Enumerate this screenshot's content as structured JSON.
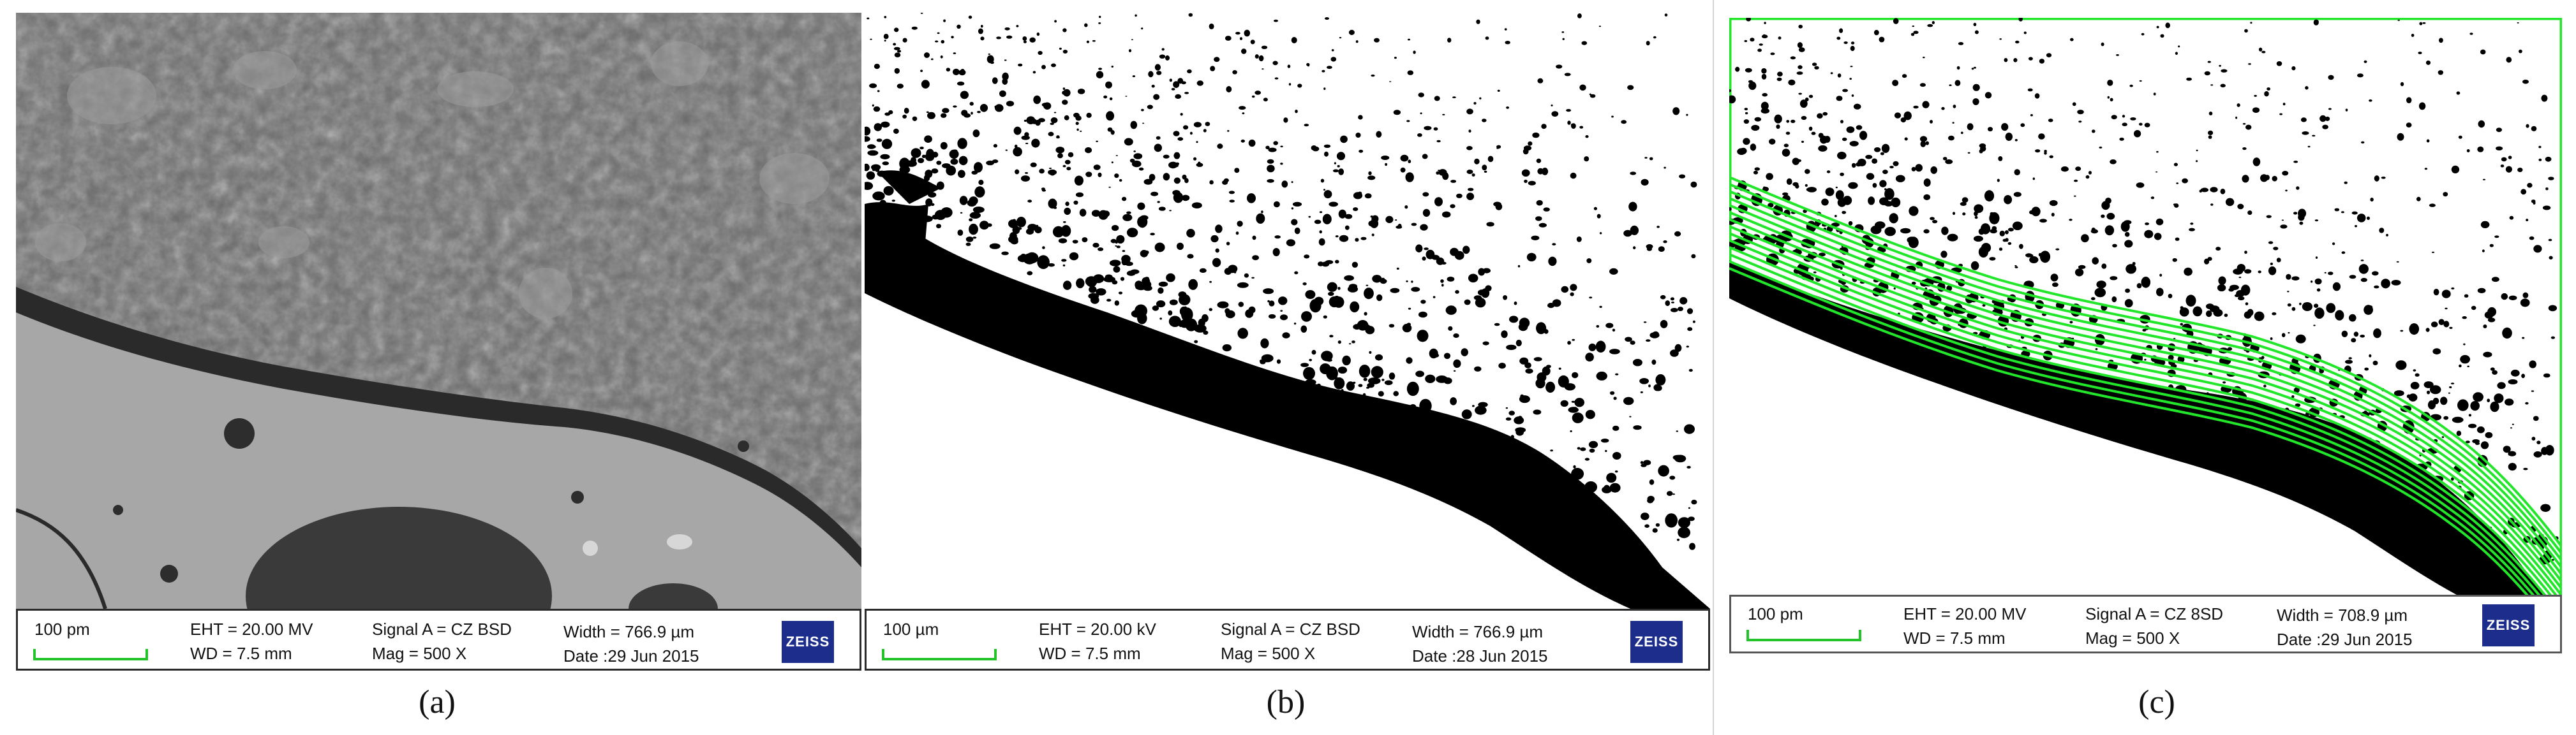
{
  "panels": [
    {
      "caption": "(a)",
      "scale_label": "100 pm",
      "eht": "EHT = 20.00 MV",
      "wd": "WD =  7.5 mm",
      "signal": "Signal A = CZ BSD",
      "mag": "Mag =     500 X",
      "width": "Width = 766.9 µm",
      "date": "Date :29 Jun 2015",
      "logo": "ZEISS"
    },
    {
      "caption": "(b)",
      "scale_label": "100 µm",
      "eht": "EHT = 20.00 kV",
      "wd": "WD =  7.5 mm",
      "signal": "Signal A = CZ BSD",
      "mag": "Mag =     500 X",
      "width": "Width = 766.9 µm",
      "date": "Date :28 Jun 2015",
      "logo": "ZEISS"
    },
    {
      "caption": "(c)",
      "scale_label": "100 pm",
      "eht": "EHT = 20.00 MV",
      "wd": "WD =  7.5 mm",
      "signal": "Signal A = CZ 8SD",
      "mag": "Mag =   500 X",
      "width": "Width = 708.9 µm",
      "date": "Date :29 Jun 2015",
      "logo": "ZEISS"
    }
  ],
  "colors": {
    "scale_bar": "#22c42a",
    "overlay_lines": "#22e62a",
    "logo_bg": "#1d2d8c"
  }
}
